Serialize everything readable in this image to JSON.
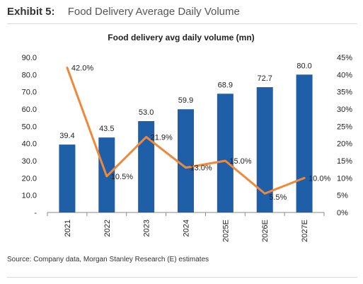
{
  "exhibit": {
    "label": "Exhibit 5:",
    "title": "Food Delivery Average Daily Volume"
  },
  "source": "Source: Company data, Morgan Stanley Research (E) estimates",
  "colors": {
    "bar": "#1f5fa8",
    "line": "#f0883a",
    "axis": "#888888"
  },
  "chart_data": {
    "type": "bar",
    "title": "Food delivery avg daily volume (mn)",
    "categories": [
      "2021",
      "2022",
      "2023",
      "2024",
      "2025E",
      "2026E",
      "2027E"
    ],
    "series": [
      {
        "type": "bar",
        "axis": "left",
        "values": [
          39.4,
          43.5,
          53.0,
          59.9,
          68.9,
          72.7,
          80.0
        ],
        "labels": [
          "39.4",
          "43.5",
          "53.0",
          "59.9",
          "68.9",
          "72.7",
          "80.0"
        ]
      },
      {
        "type": "line",
        "axis": "right",
        "values": [
          42.0,
          10.5,
          21.9,
          13.0,
          15.0,
          5.5,
          10.0
        ],
        "labels": [
          "42.0%",
          "10.5%",
          "21.9%",
          "13.0%",
          "15.0%",
          "5.5%",
          "10.0%"
        ]
      }
    ],
    "y_left": {
      "range": [
        0,
        90
      ],
      "ticks": [
        "-",
        "10.0",
        "20.0",
        "30.0",
        "40.0",
        "50.0",
        "60.0",
        "70.0",
        "80.0",
        "90.0"
      ]
    },
    "y_right": {
      "range": [
        0,
        45
      ],
      "ticks": [
        "0%",
        "5%",
        "10%",
        "15%",
        "20%",
        "25%",
        "30%",
        "35%",
        "40%",
        "45%"
      ]
    },
    "grid": false,
    "legend": "none"
  }
}
